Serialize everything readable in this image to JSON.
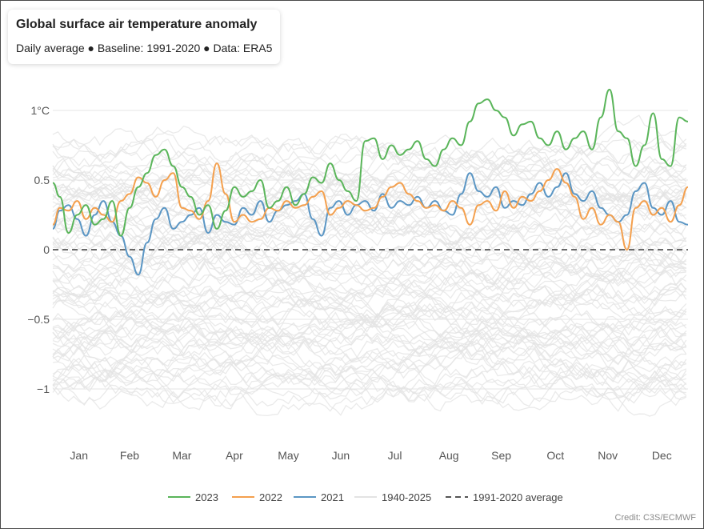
{
  "title": "Global surface air temperature anomaly",
  "subtitle": "Daily average ● Baseline: 1991-2020 ● Data: ERA5",
  "credit": "Credit: C3S/ECMWF",
  "colors": {
    "y2023": "#5ab55a",
    "y2022": "#f4a04e",
    "y2021": "#5b96c4",
    "background_years": "#e3e3e3",
    "baseline": "#555555",
    "grid": "#e6e6e6"
  },
  "chart_data": {
    "type": "line",
    "title": "Global surface air temperature anomaly",
    "xlabel": "",
    "ylabel": "",
    "x_unit": "day of year",
    "xlim": [
      1,
      365
    ],
    "ylim": [
      -1.3,
      1.3
    ],
    "y_ticks": [
      1,
      0.5,
      0,
      -0.5,
      -1
    ],
    "y_tick_labels": [
      "1°C",
      "0.5",
      "0",
      "−0.5",
      "−1"
    ],
    "month_labels": [
      "Jan",
      "Feb",
      "Mar",
      "Apr",
      "May",
      "Jun",
      "Jul",
      "Aug",
      "Sep",
      "Oct",
      "Nov",
      "Dec"
    ],
    "month_label_days": [
      16,
      45,
      75,
      105,
      136,
      166,
      197,
      228,
      258,
      289,
      319,
      350
    ],
    "grid": true,
    "legend_position": "bottom-center",
    "legend": [
      "2023",
      "2022",
      "2021",
      "1940-2025",
      "1991-2020 average"
    ],
    "baseline": {
      "name": "1991-2020 average",
      "value": 0
    },
    "background_band": {
      "name": "1940-2025",
      "min": -1.2,
      "max": 1.05
    },
    "series": [
      {
        "name": "2023",
        "x": [
          1,
          5,
          10,
          15,
          20,
          25,
          30,
          35,
          40,
          45,
          50,
          55,
          60,
          65,
          70,
          75,
          80,
          85,
          90,
          95,
          100,
          105,
          110,
          115,
          120,
          125,
          130,
          135,
          140,
          145,
          150,
          155,
          160,
          165,
          170,
          175,
          180,
          185,
          190,
          195,
          200,
          205,
          210,
          215,
          220,
          225,
          230,
          235,
          240,
          245,
          250,
          255,
          260,
          265,
          270,
          275,
          280,
          285,
          290,
          295,
          300,
          305,
          310,
          315,
          320,
          325,
          330,
          335,
          340,
          345,
          350,
          355,
          360,
          365
        ],
        "y": [
          0.48,
          0.38,
          0.12,
          0.25,
          0.32,
          0.18,
          0.22,
          0.35,
          0.1,
          0.3,
          0.45,
          0.55,
          0.68,
          0.72,
          0.6,
          0.45,
          0.38,
          0.25,
          0.32,
          0.15,
          0.28,
          0.45,
          0.38,
          0.42,
          0.5,
          0.3,
          0.35,
          0.45,
          0.32,
          0.4,
          0.52,
          0.48,
          0.62,
          0.5,
          0.42,
          0.35,
          0.78,
          0.8,
          0.65,
          0.75,
          0.68,
          0.72,
          0.78,
          0.65,
          0.6,
          0.72,
          0.8,
          0.75,
          0.92,
          1.05,
          1.08,
          1.0,
          0.95,
          0.82,
          0.9,
          0.92,
          0.8,
          0.75,
          0.85,
          0.72,
          0.8,
          0.85,
          0.72,
          0.95,
          1.15,
          0.85,
          0.8,
          0.6,
          0.75,
          0.98,
          0.65,
          0.6,
          0.95,
          0.92
        ]
      },
      {
        "name": "2022",
        "x": [
          1,
          5,
          10,
          15,
          20,
          25,
          30,
          35,
          40,
          45,
          50,
          55,
          60,
          65,
          70,
          75,
          80,
          85,
          90,
          95,
          100,
          105,
          110,
          115,
          120,
          125,
          130,
          135,
          140,
          145,
          150,
          155,
          160,
          165,
          170,
          175,
          180,
          185,
          190,
          195,
          200,
          205,
          210,
          215,
          220,
          225,
          230,
          235,
          240,
          245,
          250,
          255,
          260,
          265,
          270,
          275,
          280,
          285,
          290,
          295,
          300,
          305,
          310,
          315,
          320,
          325,
          330,
          335,
          340,
          345,
          350,
          355,
          360,
          365
        ],
        "y": [
          0.18,
          0.3,
          0.28,
          0.35,
          0.22,
          0.3,
          0.25,
          0.2,
          0.35,
          0.4,
          0.52,
          0.48,
          0.38,
          0.5,
          0.55,
          0.3,
          0.28,
          0.22,
          0.35,
          0.62,
          0.4,
          0.2,
          0.25,
          0.2,
          0.22,
          0.3,
          0.28,
          0.35,
          0.3,
          0.32,
          0.38,
          0.42,
          0.25,
          0.3,
          0.35,
          0.32,
          0.28,
          0.3,
          0.38,
          0.45,
          0.48,
          0.4,
          0.35,
          0.3,
          0.32,
          0.28,
          0.35,
          0.3,
          0.18,
          0.32,
          0.35,
          0.28,
          0.42,
          0.3,
          0.38,
          0.35,
          0.42,
          0.5,
          0.58,
          0.48,
          0.38,
          0.22,
          0.3,
          0.18,
          0.25,
          0.2,
          0.0,
          0.3,
          0.35,
          0.25,
          0.3,
          0.2,
          0.32,
          0.45
        ]
      },
      {
        "name": "2021",
        "x": [
          1,
          5,
          10,
          15,
          20,
          25,
          30,
          35,
          40,
          45,
          50,
          55,
          60,
          65,
          70,
          75,
          80,
          85,
          90,
          95,
          100,
          105,
          110,
          115,
          120,
          125,
          130,
          135,
          140,
          145,
          150,
          155,
          160,
          165,
          170,
          175,
          180,
          185,
          190,
          195,
          200,
          205,
          210,
          215,
          220,
          225,
          230,
          235,
          240,
          245,
          250,
          255,
          260,
          265,
          270,
          275,
          280,
          285,
          290,
          295,
          300,
          305,
          310,
          315,
          320,
          325,
          330,
          335,
          340,
          345,
          350,
          355,
          360,
          365
        ],
        "y": [
          0.15,
          0.28,
          0.32,
          0.22,
          0.1,
          0.25,
          0.35,
          0.2,
          0.1,
          -0.05,
          -0.18,
          0.05,
          0.22,
          0.3,
          0.15,
          0.2,
          0.25,
          0.3,
          0.12,
          0.25,
          0.2,
          0.18,
          0.3,
          0.25,
          0.35,
          0.2,
          0.28,
          0.32,
          0.35,
          0.4,
          0.22,
          0.1,
          0.3,
          0.35,
          0.25,
          0.32,
          0.35,
          0.28,
          0.4,
          0.3,
          0.35,
          0.32,
          0.38,
          0.3,
          0.35,
          0.28,
          0.25,
          0.4,
          0.55,
          0.42,
          0.38,
          0.45,
          0.3,
          0.35,
          0.32,
          0.4,
          0.48,
          0.38,
          0.45,
          0.55,
          0.4,
          0.35,
          0.42,
          0.3,
          0.25,
          0.2,
          0.25,
          0.42,
          0.48,
          0.3,
          0.25,
          0.35,
          0.2,
          0.18
        ]
      }
    ]
  }
}
